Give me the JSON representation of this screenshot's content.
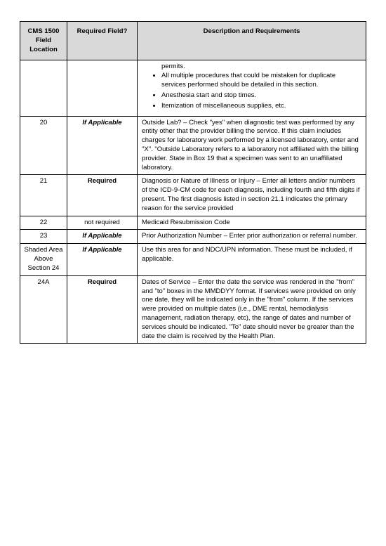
{
  "headers": {
    "col1": "CMS 1500 Field Location",
    "col2": "Required Field?",
    "col3": "Description and Requirements"
  },
  "rows": [
    {
      "loc": "",
      "req": "",
      "req_style": "",
      "type": "bullets",
      "lead": "permits.",
      "bullets": [
        "All multiple procedures that could be mistaken for duplicate services performed should be detailed in this section.",
        "Anesthesia start and stop times.",
        "Itemization of miscellaneous supplies, etc."
      ]
    },
    {
      "loc": "20",
      "req": "If Applicable",
      "req_style": "bold-italic",
      "type": "text",
      "desc": "Outside Lab? – Check \"yes\" when diagnostic test was performed by any entity other that the provider billing the service. If this claim includes charges for laboratory work performed by a licensed laboratory, enter and \"X\". \"Outside Laboratory refers to a laboratory not affiliated with the billing provider. State in Box 19 that a specimen was sent to an unaffiliated laboratory."
    },
    {
      "loc": "21",
      "req": "Required",
      "req_style": "bold",
      "type": "text",
      "desc": "Diagnosis or Nature of Illness or Injury – Enter all letters and/or numbers of the ICD-9-CM code for each diagnosis, including fourth and fifth digits if present. The first diagnosis listed in section 21.1 indicates the primary reason for the service provided"
    },
    {
      "loc": "22",
      "req": "not required",
      "req_style": "",
      "type": "text",
      "desc": "Medicaid Resubmission Code"
    },
    {
      "loc": "23",
      "req": "If Applicable",
      "req_style": "bold-italic",
      "type": "text",
      "desc": "Prior Authorization Number – Enter prior authorization or referral number."
    },
    {
      "loc": "Shaded Area Above Section 24",
      "req": "If Applicable",
      "req_style": "bold-italic",
      "type": "text",
      "desc": "Use this area for and NDC/UPN information. These must be included, if applicable."
    },
    {
      "loc": "24A",
      "req": "Required",
      "req_style": "bold",
      "type": "text",
      "desc": "Dates of Service – Enter the date the service was rendered in the \"from\" and \"to\" boxes in the MMDDYY format.  If services were provided on only one date, they will be indicated only in the \"from\" column.  If the services were provided on multiple dates (i.e., DME rental, hemodialysis management, radiation therapy, etc), the range of dates and number of services should be indicated.  \"To\" date should never be greater than the date the claim is received by the Health Plan."
    }
  ]
}
